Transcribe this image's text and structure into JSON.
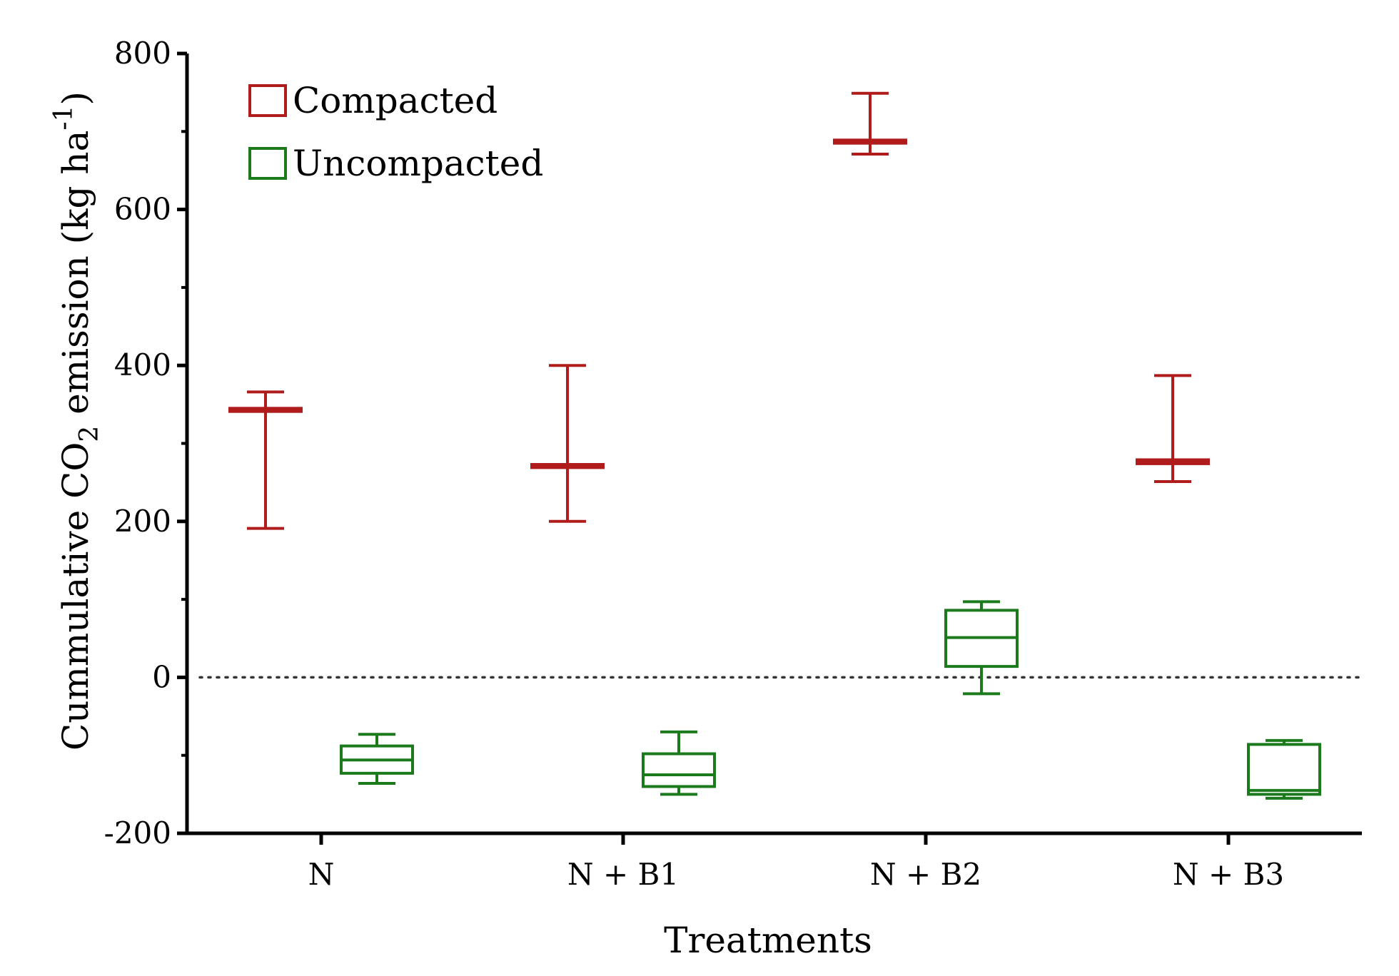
{
  "chart_data": {
    "type": "box",
    "xlabel": "Treatments",
    "ylabel": {
      "prefix": "Cummulative CO",
      "subscript": "2",
      "middle": " emission (kg ha",
      "superscript": "-1",
      "suffix": ")"
    },
    "categories": [
      "N",
      "N + B1",
      "N + B2",
      "N + B3"
    ],
    "ylim": [
      -200,
      800
    ],
    "yticks": [
      "-200",
      "0",
      "200",
      "400",
      "600",
      "800"
    ],
    "reference_line": {
      "y": 0,
      "style": "dotted"
    },
    "legend": {
      "placement": "top-left"
    },
    "series": [
      {
        "name": "Compacted",
        "color": "#b01c1c",
        "boxes": [
          {
            "category": "N",
            "min": 191,
            "q1": 341,
            "median": 343,
            "q3": 345,
            "max": 366
          },
          {
            "category": "N + B1",
            "min": 200,
            "q1": 269,
            "median": 271,
            "q3": 273,
            "max": 400
          },
          {
            "category": "N + B2",
            "min": 671,
            "q1": 685,
            "median": 687,
            "q3": 689,
            "max": 749
          },
          {
            "category": "N + B3",
            "min": 251,
            "q1": 274,
            "median": 276,
            "q3": 279,
            "max": 387
          }
        ]
      },
      {
        "name": "Uncompacted",
        "color": "#1b7a1b",
        "boxes": [
          {
            "category": "N",
            "min": -136,
            "q1": -123,
            "median": -106,
            "q3": -88,
            "max": -73
          },
          {
            "category": "N + B1",
            "min": -150,
            "q1": -140,
            "median": -125,
            "q3": -98,
            "max": -70
          },
          {
            "category": "N + B2",
            "min": -21,
            "q1": 14,
            "median": 51,
            "q3": 86,
            "max": 97
          },
          {
            "category": "N + B3",
            "min": -155,
            "q1": -150,
            "median": -145,
            "q3": -86,
            "max": -81
          }
        ]
      }
    ]
  }
}
